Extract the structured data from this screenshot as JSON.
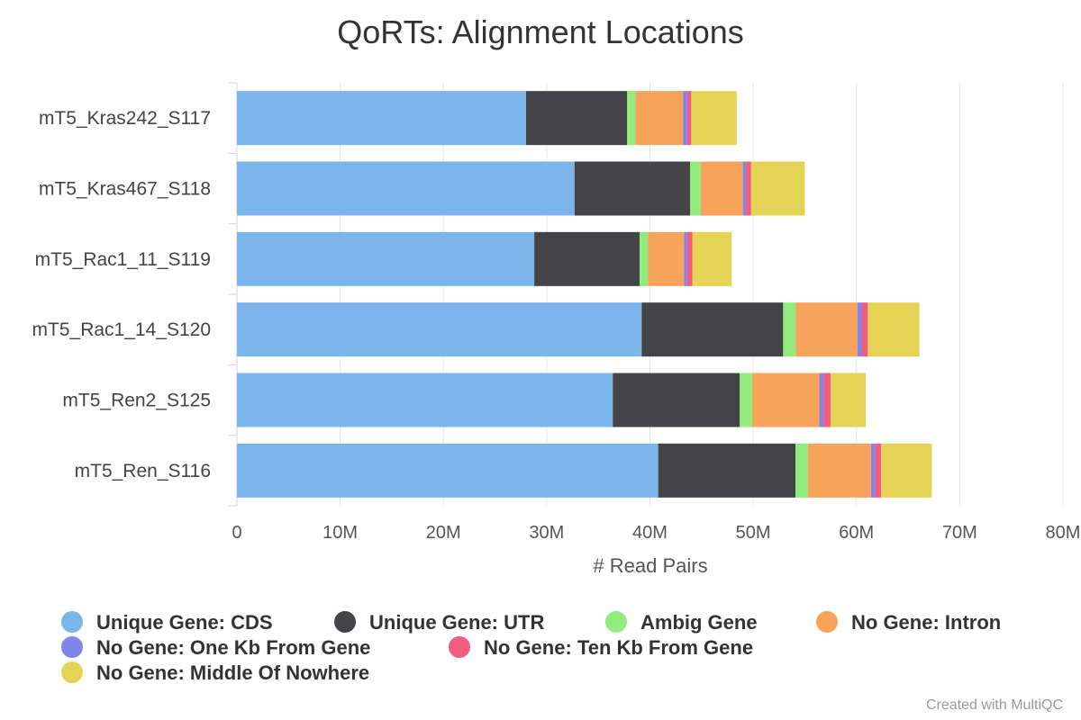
{
  "chart_data": {
    "type": "bar",
    "orientation": "horizontal",
    "stacked": true,
    "title": "QoRTs: Alignment Locations",
    "xlabel": "# Read Pairs",
    "ylabel": "",
    "xlim": [
      0,
      80000000
    ],
    "x_ticks": [
      "0",
      "10M",
      "20M",
      "30M",
      "40M",
      "50M",
      "60M",
      "70M",
      "80M"
    ],
    "grid": true,
    "legend_position": "bottom",
    "categories": [
      "mT5_Kras242_S117",
      "mT5_Kras467_S118",
      "mT5_Rac1_11_S119",
      "mT5_Rac1_14_S120",
      "mT5_Ren2_S125",
      "mT5_Ren_S116"
    ],
    "series": [
      {
        "name": "Unique Gene: CDS",
        "color": "#7cb5ec",
        "values": [
          28000000,
          32700000,
          28800000,
          39200000,
          36400000,
          40800000
        ]
      },
      {
        "name": "Unique Gene: UTR",
        "color": "#434348",
        "values": [
          9800000,
          11200000,
          10200000,
          13700000,
          12300000,
          13300000
        ]
      },
      {
        "name": "Ambig Gene",
        "color": "#90ed7d",
        "values": [
          800000,
          1000000,
          800000,
          1200000,
          1200000,
          1200000
        ]
      },
      {
        "name": "No Gene: Intron",
        "color": "#f7a35c",
        "values": [
          4600000,
          4100000,
          3500000,
          6000000,
          6500000,
          6100000
        ]
      },
      {
        "name": "No Gene: One Kb From Gene",
        "color": "#8085e9",
        "values": [
          400000,
          300000,
          300000,
          400000,
          400000,
          400000
        ]
      },
      {
        "name": "No Gene: Ten Kb From Gene",
        "color": "#f15c80",
        "values": [
          400000,
          500000,
          500000,
          600000,
          700000,
          600000
        ]
      },
      {
        "name": "No Gene: Middle Of Nowhere",
        "color": "#e4d354",
        "values": [
          4400000,
          5200000,
          3800000,
          5000000,
          3400000,
          4900000
        ]
      }
    ]
  },
  "credit": "Created with MultiQC"
}
